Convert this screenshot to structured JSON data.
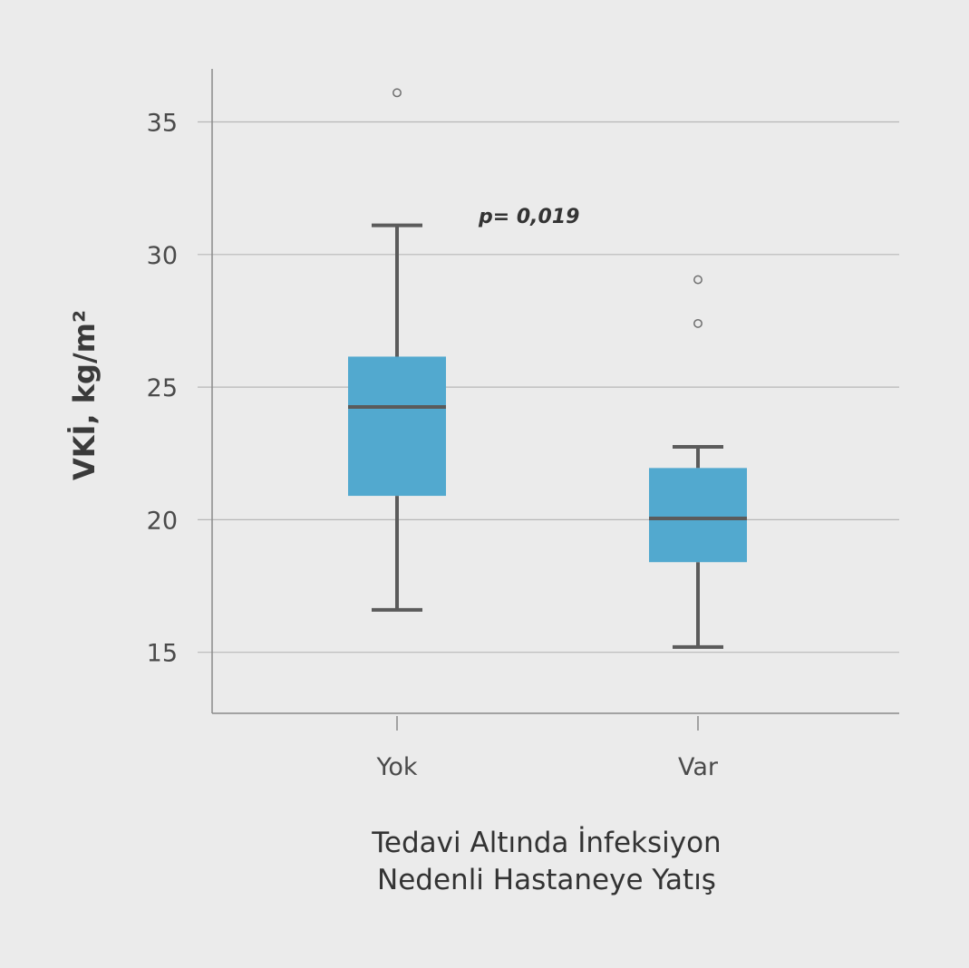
{
  "chart_data": {
    "type": "boxplot",
    "title": "",
    "ylabel": "VKİ, kg/m²",
    "xlabel_lines": [
      "Tedavi Altında İnfeksiyon",
      "Nedenli Hastaneye Yatış"
    ],
    "ylim": [
      12.7,
      37
    ],
    "yticks": [
      15,
      20,
      25,
      30,
      35
    ],
    "grid": true,
    "categories": [
      "Yok",
      "Var"
    ],
    "boxes": [
      {
        "category": "Yok",
        "whisker_low": 16.6,
        "q1": 20.9,
        "median": 24.25,
        "q3": 26.15,
        "whisker_high": 31.1,
        "outliers": [
          36.1
        ]
      },
      {
        "category": "Var",
        "whisker_low": 15.2,
        "q1": 18.4,
        "median": 20.05,
        "q3": 21.95,
        "whisker_high": 22.75,
        "outliers": [
          27.4,
          29.05
        ]
      }
    ],
    "annotation": "p= 0,019",
    "box_color": "#52a9cf",
    "line_color": "#5b5b5b"
  }
}
